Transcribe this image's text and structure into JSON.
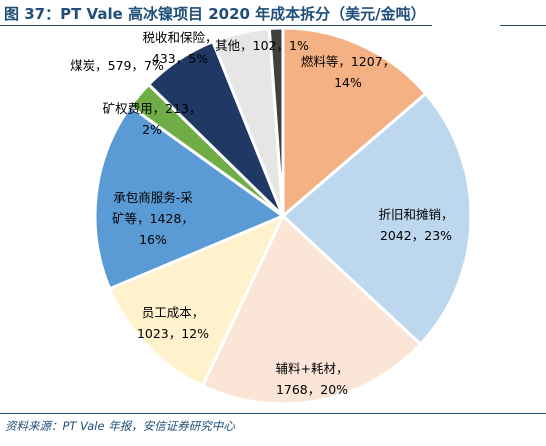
{
  "title": "图 37：PT Vale 高冰镍项目 2020 年成本拆分（美元/金吨）",
  "source": "资料来源：PT Vale 年报，安信证券研究中心",
  "chart_data": {
    "type": "pie",
    "title": "PT Vale 高冰镍项目 2020 年成本拆分（美元/金吨）",
    "unit": "美元/金吨",
    "slices": [
      {
        "label": "燃料等",
        "value": 1207,
        "percent": "14%",
        "color": "#f4b183",
        "label_lines": [
          "燃料等，1207，",
          "14%"
        ]
      },
      {
        "label": "折旧和摊销",
        "value": 2042,
        "percent": "23%",
        "color": "#bdd7ee",
        "label_lines": [
          "折旧和摊销，",
          "2042，23%"
        ]
      },
      {
        "label": "辅料+耗材",
        "value": 1768,
        "percent": "20%",
        "color": "#fbe5d6",
        "label_lines": [
          "辅料+耗材，",
          "1768，20%"
        ]
      },
      {
        "label": "员工成本",
        "value": 1023,
        "percent": "12%",
        "color": "#fff2cc",
        "label_lines": [
          "员工成本，",
          "1023，12%"
        ]
      },
      {
        "label": "承包商服务-采矿等",
        "value": 1428,
        "percent": "16%",
        "color": "#5b9bd5",
        "label_lines": [
          "承包商服务-采",
          "矿等，1428，",
          "16%"
        ]
      },
      {
        "label": "矿权费用",
        "value": 213,
        "percent": "2%",
        "color": "#70ad47",
        "label_lines": [
          "矿权费用，213，",
          "2%"
        ]
      },
      {
        "label": "煤炭",
        "value": 579,
        "percent": "7%",
        "color": "#203864",
        "label_lines": [
          "煤炭，579，7%"
        ]
      },
      {
        "label": "税收和保险",
        "value": 433,
        "percent": "5%",
        "color": "#e7e6e6",
        "label_lines": [
          "税收和保险，",
          "433，5%"
        ]
      },
      {
        "label": "其他",
        "value": 102,
        "percent": "1%",
        "color": "#404040",
        "label_lines": [
          "其他，102，1%"
        ]
      }
    ]
  }
}
